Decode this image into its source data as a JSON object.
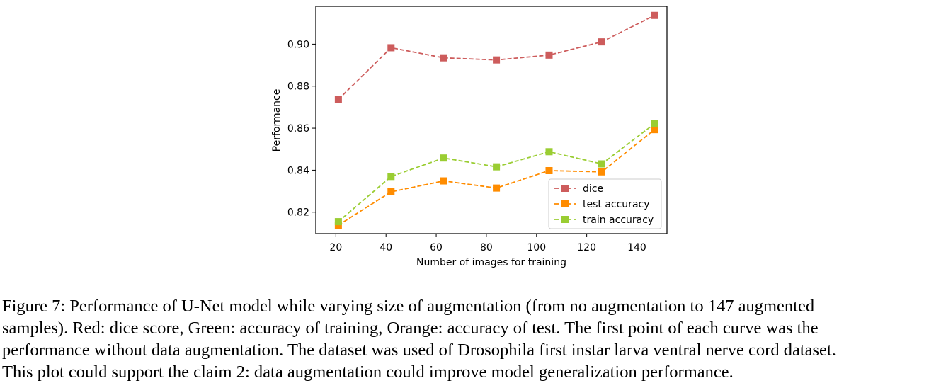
{
  "chart_data": {
    "type": "line",
    "xlabel": "Number of images for training",
    "ylabel": "Performance",
    "xlim": [
      12,
      152
    ],
    "ylim": [
      0.8098,
      0.918
    ],
    "xticks": [
      20,
      40,
      60,
      80,
      100,
      120,
      140
    ],
    "yticks": [
      0.82,
      0.84,
      0.86,
      0.88,
      0.9
    ],
    "ytick_labels": [
      "0.82",
      "0.84",
      "0.86",
      "0.88",
      "0.90"
    ],
    "xtick_labels": [
      "20",
      "40",
      "60",
      "80",
      "100",
      "120",
      "140"
    ],
    "grid": false,
    "legend_position": "lower-right",
    "x": [
      21,
      42,
      63,
      84,
      105,
      126,
      147
    ],
    "series": [
      {
        "name": "dice",
        "color": "#cd5c5c",
        "values": [
          0.8737,
          0.8983,
          0.8935,
          0.8925,
          0.8948,
          0.9011,
          0.9137
        ]
      },
      {
        "name": "test accuracy",
        "color": "#ff8c00",
        "values": [
          0.8138,
          0.8297,
          0.8349,
          0.8315,
          0.8398,
          0.8392,
          0.8593
        ]
      },
      {
        "name": "train accuracy",
        "color": "#9acd32",
        "values": [
          0.8155,
          0.837,
          0.8458,
          0.8416,
          0.8488,
          0.843,
          0.8621
        ]
      }
    ]
  },
  "caption": [
    "Figure 7: Performance of U-Net model while varying size of augmentation (from no augmentation to 147 augmented",
    "samples). Red: dice score, Green: accuracy of training, Orange: accuracy of test. The first point of each curve was the",
    "performance without data augmentation. The dataset was used of Drosophila first instar larva ventral nerve cord dataset.",
    "This plot could support the claim 2: data augmentation could improve model generalization performance."
  ]
}
